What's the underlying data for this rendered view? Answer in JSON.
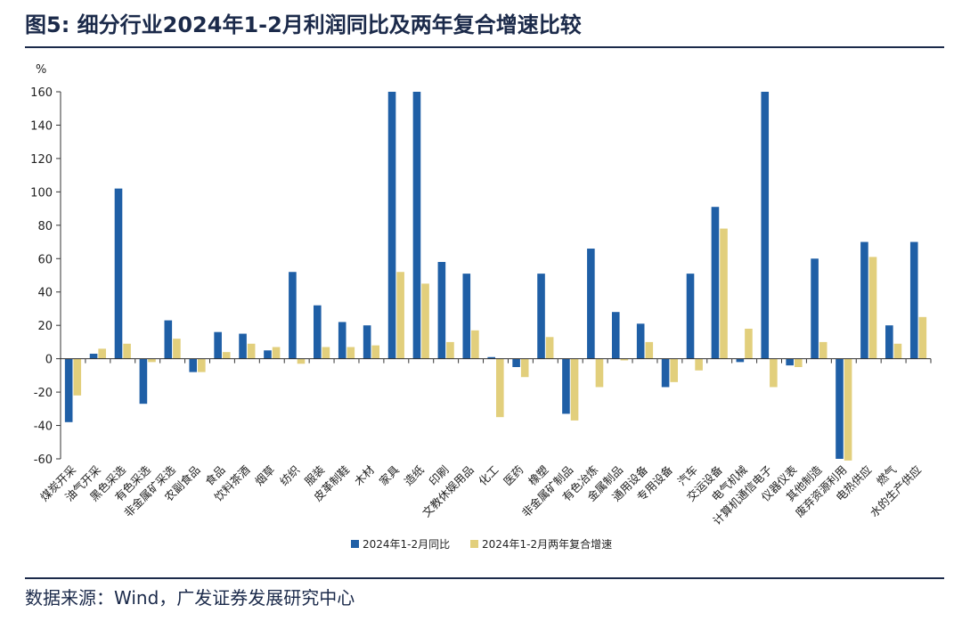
{
  "header": {
    "title": "图5:  细分行业2024年1-2月利润同比及两年复合增速比较"
  },
  "footer": {
    "source": "数据来源：Wind，广发证券发展研究中心"
  },
  "colors": {
    "series1": "#1f5fa6",
    "series2": "#e2cf7c",
    "title": "#1b2a4a",
    "axis": "#333333"
  },
  "chart_data": {
    "type": "bar",
    "ylabel": "%",
    "ylim": [
      -60,
      160
    ],
    "yticks": [
      -60,
      -40,
      -20,
      0,
      20,
      40,
      60,
      80,
      100,
      120,
      140,
      160
    ],
    "grid": false,
    "legend_position": "bottom",
    "categories": [
      "煤炭开采",
      "油气开采",
      "黑色采选",
      "有色采选",
      "非金属矿采选",
      "农副食品",
      "食品",
      "饮料茶酒",
      "烟草",
      "纺织",
      "服装",
      "皮革制鞋",
      "木材",
      "家具",
      "造纸",
      "印刷",
      "文教休娱用品",
      "化工",
      "医药",
      "橡塑",
      "非金属矿制品",
      "有色冶炼",
      "金属制品",
      "通用设备",
      "专用设备",
      "汽车",
      "交运设备",
      "电气机械",
      "计算机通信电子",
      "仪器仪表",
      "其他制造",
      "废弃资源利用",
      "电热供应",
      "燃气",
      "水的生产供应"
    ],
    "series": [
      {
        "name": "2024年1-2月同比",
        "values": [
          -38,
          3,
          102,
          -27,
          23,
          -8,
          16,
          15,
          5,
          52,
          32,
          22,
          20,
          160,
          160,
          58,
          51,
          1,
          -5,
          51,
          -33,
          66,
          28,
          21,
          -17,
          51,
          91,
          -2,
          160,
          -4,
          60,
          -60,
          70,
          20,
          70
        ]
      },
      {
        "name": "2024年1-2月两年复合增速",
        "values": [
          -22,
          6,
          9,
          -2,
          12,
          -8,
          4,
          9,
          7,
          -3,
          7,
          7,
          8,
          52,
          45,
          10,
          17,
          -35,
          -11,
          13,
          -37,
          -17,
          -1,
          10,
          -14,
          -7,
          78,
          18,
          -17,
          -5,
          10,
          -61,
          61,
          9,
          25
        ]
      }
    ]
  }
}
